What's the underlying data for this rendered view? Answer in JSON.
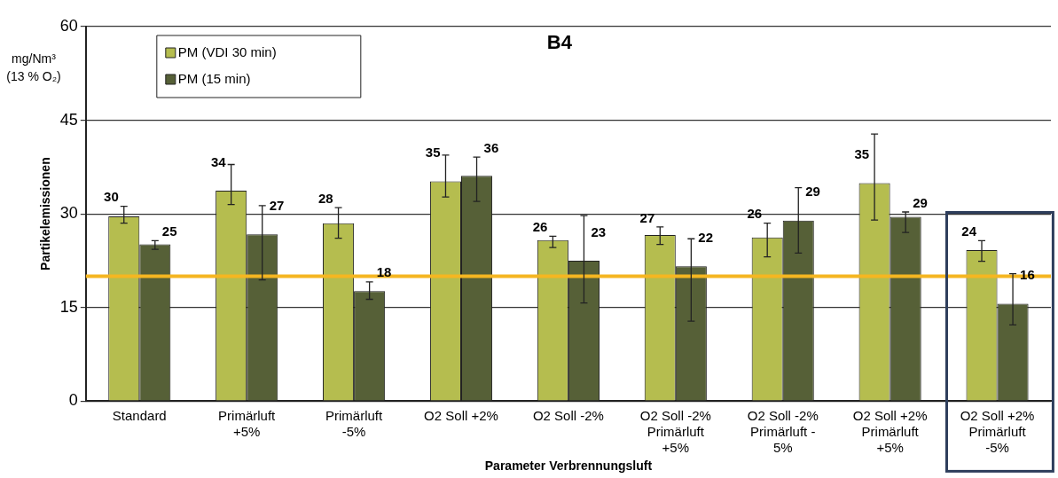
{
  "chart_data": {
    "type": "bar",
    "title": "B4",
    "xlabel": "Parameter Verbrennungsluft",
    "ylabel": "Partikelemissionen",
    "annotations": [
      "mg/Nm³\n(13 % O₂)"
    ],
    "categories": [
      "Standard",
      "Primärluft\n+5%",
      "Primärluft\n-5%",
      "O2 Soll +2%",
      "O2 Soll -2%",
      "O2 Soll -2%\nPrimärluft\n+5%",
      "O2 Soll -2%\nPrimärluft -\n5%",
      "O2 Soll +2%\nPrimärluft\n+5%",
      "O2 Soll +2%\nPrimärluft\n-5%"
    ],
    "series": [
      {
        "name": "PM (VDI 30 min)",
        "color": "#b5bd4f",
        "values": [
          29.6,
          33.7,
          28.5,
          35.2,
          25.8,
          26.6,
          26.2,
          34.9,
          24.2
        ],
        "errors": [
          [
            28.5,
            31.2
          ],
          [
            31.5,
            37.9
          ],
          [
            26.1,
            31.0
          ],
          [
            32.7,
            39.4
          ],
          [
            24.6,
            26.4
          ],
          [
            25.1,
            27.9
          ],
          [
            23.1,
            28.5
          ],
          [
            29.0,
            42.8
          ],
          [
            22.4,
            25.7
          ]
        ],
        "value_labels": [
          "30",
          "34",
          "28",
          "35",
          "26",
          "27",
          "26",
          "35",
          "24"
        ]
      },
      {
        "name": "PM (15 min)",
        "color": "#566037",
        "values": [
          25.1,
          26.7,
          17.6,
          36.1,
          22.5,
          21.6,
          28.9,
          29.5,
          15.6
        ],
        "errors": [
          [
            24.3,
            25.7
          ],
          [
            19.4,
            31.3
          ],
          [
            16.3,
            19.1
          ],
          [
            32.0,
            39.1
          ],
          [
            15.7,
            29.7
          ],
          [
            12.8,
            26.0
          ],
          [
            23.7,
            34.2
          ],
          [
            27.0,
            30.3
          ],
          [
            12.2,
            20.4
          ]
        ],
        "value_labels": [
          "25",
          "27",
          "18",
          "36",
          "23",
          "22",
          "29",
          "29",
          "16"
        ]
      }
    ],
    "ylim": [
      0,
      60
    ],
    "yticks": [
      0,
      15,
      30,
      45,
      60
    ],
    "grid": "y",
    "legend": "top left",
    "ref_lines": [
      {
        "axis": "y",
        "value": 20,
        "color": "#f5b621"
      }
    ]
  }
}
